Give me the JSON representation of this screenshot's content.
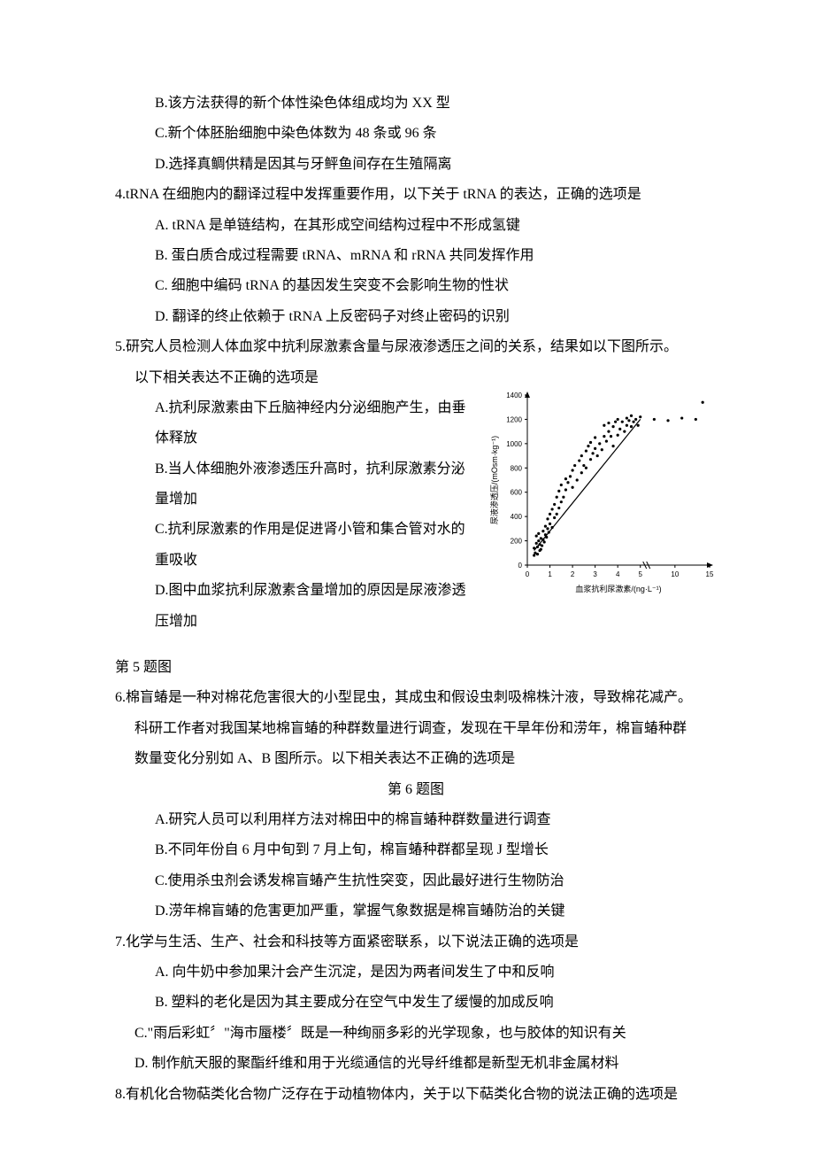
{
  "q3": {
    "optB": "B.该方法获得的新个体性染色体组成均为 XX 型",
    "optC": "C.新个体胚胎细胞中染色体数为 48 条或 96 条",
    "optD": "D.选择真鲷供精是因其与牙鲆鱼间存在生殖隔离"
  },
  "q4": {
    "stem": "4.tRNA 在细胞内的翻译过程中发挥重要作用，以下关于 tRNA 的表达，正确的选项是",
    "optA": "A. tRNA 是单链结构，在其形成空间结构过程中不形成氢键",
    "optB": "B. 蛋白质合成过程需要 tRNA、mRNA 和 rRNA 共同发挥作用",
    "optC": "C. 细胞中编码 tRNA 的基因发生突变不会影响生物的性状",
    "optD": "D. 翻译的终止依赖于 tRNA 上反密码子对终止密码的识别"
  },
  "q5": {
    "stem1": "5.研究人员检测人体血浆中抗利尿激素含量与尿液渗透压之间的关系，结果如以下图所示。",
    "stem2": "以下相关表达不正确的选项是",
    "optA": "A.抗利尿激素由下丘脑神经内分泌细胞产生，由垂体释放",
    "optB": "B.当人体细胞外液渗透压升高时，抗利尿激素分泌量增加",
    "optC": "C.抗利尿激素的作用是促进肾小管和集合管对水的重吸收",
    "optD": "D.图中血浆抗利尿激素含量增加的原因是尿液渗透压增加",
    "caption": "第 5 题图",
    "chart": {
      "type": "scatter",
      "x_label": "血浆抗利尿激素/(ng·L⁻¹)",
      "y_label": "尿液渗透压/(mOsm·kg⁻¹)",
      "x_ticks": [
        0,
        1,
        2,
        3,
        4,
        5,
        10,
        15
      ],
      "y_ticks": [
        0,
        200,
        400,
        600,
        800,
        1000,
        1200,
        1400
      ],
      "xlim": [
        0,
        15
      ],
      "ylim": [
        0,
        1400
      ],
      "axis_break_x": 5,
      "point_color": "#000000",
      "line_color": "#000000",
      "axis_color": "#000000",
      "text_color": "#000000",
      "tick_fontsize": 8,
      "label_fontsize": 9,
      "point_radius": 1.6,
      "line_width": 1.2,
      "fit_line": [
        [
          0.3,
          120
        ],
        [
          5.0,
          1200
        ]
      ],
      "points": [
        [
          0.3,
          80
        ],
        [
          0.3,
          140
        ],
        [
          0.35,
          100
        ],
        [
          0.4,
          180
        ],
        [
          0.4,
          240
        ],
        [
          0.45,
          90
        ],
        [
          0.45,
          150
        ],
        [
          0.5,
          200
        ],
        [
          0.5,
          260
        ],
        [
          0.55,
          120
        ],
        [
          0.55,
          170
        ],
        [
          0.6,
          220
        ],
        [
          0.6,
          130
        ],
        [
          0.65,
          160
        ],
        [
          0.7,
          210
        ],
        [
          0.7,
          280
        ],
        [
          0.75,
          190
        ],
        [
          0.8,
          250
        ],
        [
          0.8,
          320
        ],
        [
          0.85,
          230
        ],
        [
          0.9,
          300
        ],
        [
          0.9,
          380
        ],
        [
          0.95,
          270
        ],
        [
          1.0,
          340
        ],
        [
          1.0,
          420
        ],
        [
          1.1,
          310
        ],
        [
          1.1,
          460
        ],
        [
          1.2,
          390
        ],
        [
          1.2,
          500
        ],
        [
          1.3,
          420
        ],
        [
          1.3,
          560
        ],
        [
          1.4,
          470
        ],
        [
          1.4,
          610
        ],
        [
          1.5,
          520
        ],
        [
          1.5,
          660
        ],
        [
          1.6,
          560
        ],
        [
          1.7,
          620
        ],
        [
          1.7,
          710
        ],
        [
          1.8,
          680
        ],
        [
          1.9,
          730
        ],
        [
          2.0,
          780
        ],
        [
          2.0,
          640
        ],
        [
          2.1,
          820
        ],
        [
          2.2,
          700
        ],
        [
          2.3,
          860
        ],
        [
          2.4,
          760
        ],
        [
          2.4,
          900
        ],
        [
          2.5,
          820
        ],
        [
          2.6,
          940
        ],
        [
          2.6,
          800
        ],
        [
          2.7,
          980
        ],
        [
          2.8,
          870
        ],
        [
          2.8,
          1010
        ],
        [
          2.9,
          920
        ],
        [
          3.0,
          960
        ],
        [
          3.0,
          1050
        ],
        [
          3.1,
          900
        ],
        [
          3.2,
          1000
        ],
        [
          3.3,
          950
        ],
        [
          3.4,
          1060
        ],
        [
          3.4,
          1150
        ],
        [
          3.5,
          1020
        ],
        [
          3.6,
          1100
        ],
        [
          3.6,
          1170
        ],
        [
          3.7,
          1060
        ],
        [
          3.8,
          1140
        ],
        [
          3.8,
          980
        ],
        [
          3.9,
          1180
        ],
        [
          4.0,
          1070
        ],
        [
          4.0,
          1200
        ],
        [
          4.1,
          1120
        ],
        [
          4.2,
          1180
        ],
        [
          4.3,
          1100
        ],
        [
          4.4,
          1210
        ],
        [
          4.4,
          1150
        ],
        [
          4.5,
          1190
        ],
        [
          4.6,
          1140
        ],
        [
          4.6,
          1230
        ],
        [
          4.7,
          1180
        ],
        [
          4.8,
          1200
        ],
        [
          4.9,
          1150
        ],
        [
          5.0,
          1220
        ],
        [
          7.0,
          1200
        ],
        [
          9.0,
          1190
        ],
        [
          11.0,
          1210
        ],
        [
          13.0,
          1200
        ],
        [
          14.0,
          1340
        ]
      ]
    }
  },
  "q6": {
    "stem1": "6.棉盲蝽是一种对棉花危害很大的小型昆虫，其成虫和假设虫刺吸棉株汁液，导致棉花减产。",
    "stem2": "科研工作者对我国某地棉盲蝽的种群数量进行调查，发现在干旱年份和涝年，棉盲蝽种群",
    "stem3": "数量变化分别如 A、B 图所示。以下相关表达不正确的选项是",
    "caption": "第 6 题图",
    "optA": "A.研究人员可以利用样方法对棉田中的棉盲蝽种群数量进行调查",
    "optB": "B.不同年份自 6 月中旬到 7 月上旬，棉盲蝽种群都呈现 J 型增长",
    "optC": "C.使用杀虫剂会诱发棉盲蝽产生抗性突变，因此最好进行生物防治",
    "optD": "D.涝年棉盲蝽的危害更加严重，掌握气象数据是棉盲蝽防治的关键"
  },
  "q7": {
    "stem": "7.化学与生活、生产、社会和科技等方面紧密联系，以下说法正确的选项是",
    "optA": "A. 向牛奶中参加果汁会产生沉淀，是因为两者间发生了中和反响",
    "optB": "B. 塑料的老化是因为其主要成分在空气中发生了缓慢的加成反响",
    "optC": "C.\"雨后彩虹〞\"海市蜃楼〞既是一种绚丽多彩的光学现象，也与胶体的知识有关",
    "optD": "D. 制作航天服的聚酯纤维和用于光缆通信的光导纤维都是新型无机非金属材料"
  },
  "q8": {
    "stem": "8.有机化合物萜类化合物广泛存在于动植物体内，关于以下萜类化合物的说法正确的选项是"
  }
}
